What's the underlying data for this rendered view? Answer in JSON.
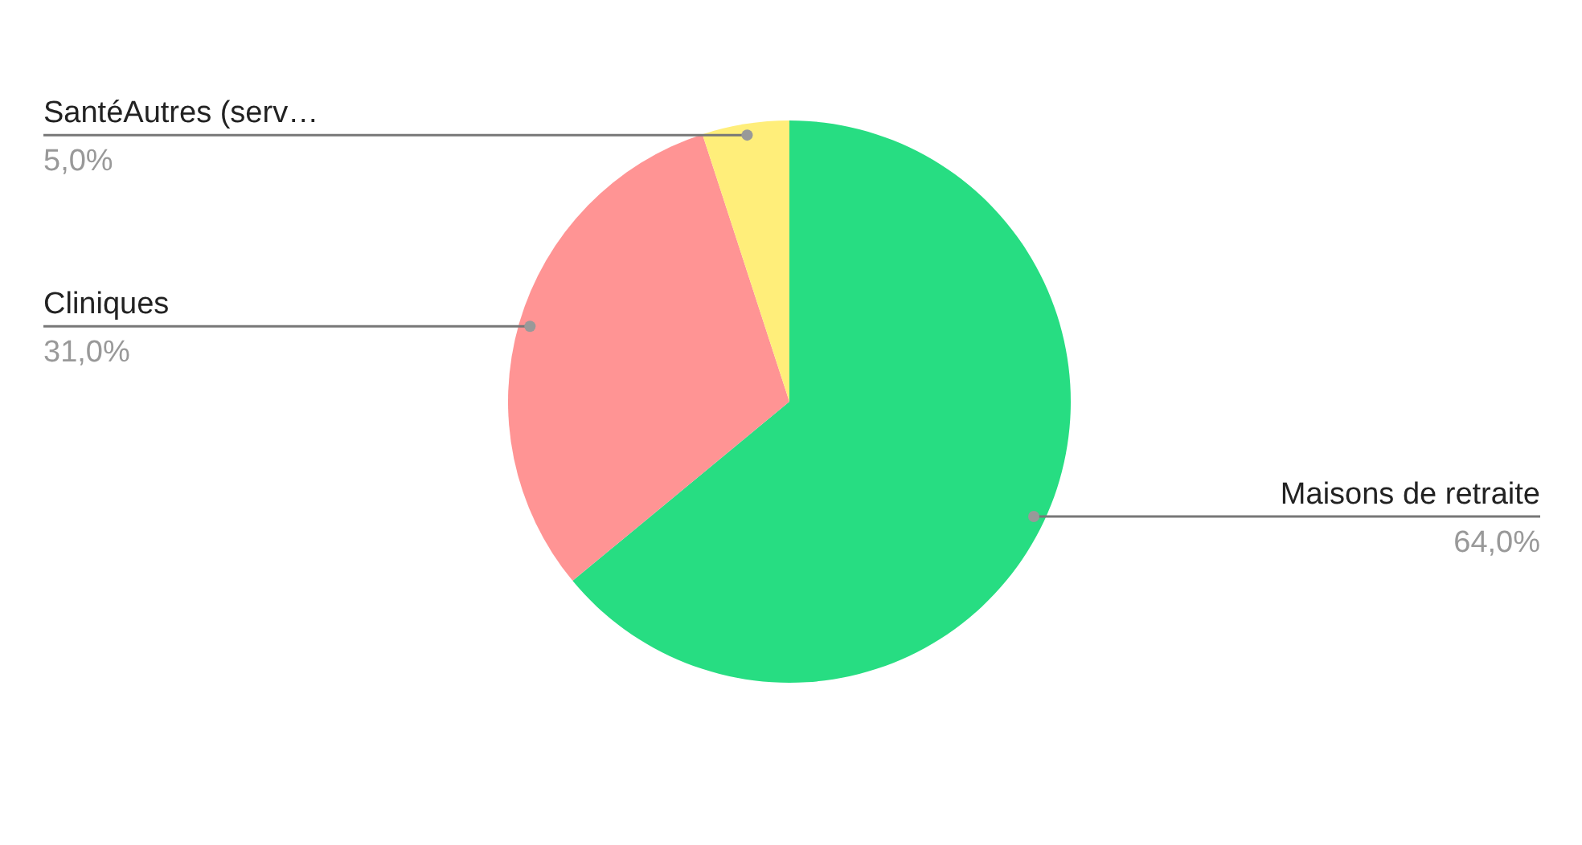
{
  "chart_data": {
    "type": "pie",
    "categories": [
      "Maisons de retraite",
      "Cliniques",
      "SantéAutres (serv…"
    ],
    "values": [
      64,
      31,
      5
    ],
    "value_labels": [
      "64,0%",
      "31,0%",
      "5,0%"
    ],
    "colors": [
      "#27dd82",
      "#ff9494",
      "#ffee7a"
    ]
  }
}
